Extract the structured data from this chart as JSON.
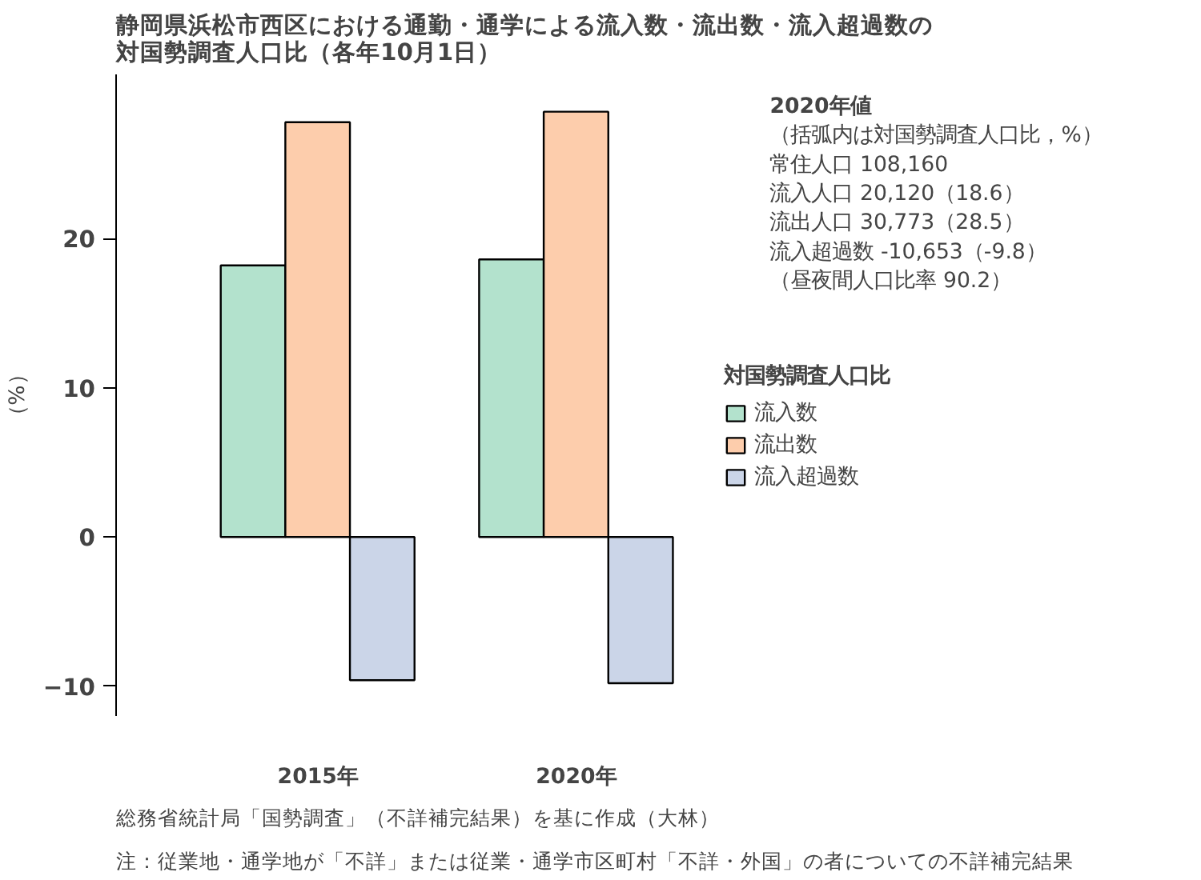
{
  "chart_data": {
    "type": "bar",
    "title": "静岡県浜松市西区における通勤・通学による流入数・流出数・流入超過数の対国勢調査人口比（各年10月1日）",
    "ylabel": "（%）",
    "legend_title": "対国勢調査人口比",
    "categories": [
      "2015年",
      "2020年"
    ],
    "series": [
      {
        "name": "流入数",
        "color": "#b3e2cd",
        "values": [
          18.2,
          18.6
        ]
      },
      {
        "name": "流出数",
        "color": "#fdcdac",
        "values": [
          27.8,
          28.5
        ]
      },
      {
        "name": "流入超過数",
        "color": "#cbd5e8",
        "values": [
          -9.6,
          -9.8
        ]
      }
    ],
    "ylim": [
      -12,
      31
    ],
    "yticks": [
      -10,
      0,
      10,
      20
    ],
    "grid": false,
    "legend": "right",
    "annotations": [
      "2020年値",
      "（括弧内は対国勢調査人口比，%）",
      "常住人口 108,160",
      "流入人口 20,120（18.6）",
      "流出人口 30,773（28.5）",
      "流入超過数 -10,653（-9.8）",
      "（昼夜間人口比率 90.2）",
      "総務省統計局「国勢調査」（不詳補完結果）を基に作成（大林）",
      "注：従業地・通学地が「不詳」または従業・通学市区町村「不詳・外国」の者についての不詳補完結果"
    ]
  }
}
